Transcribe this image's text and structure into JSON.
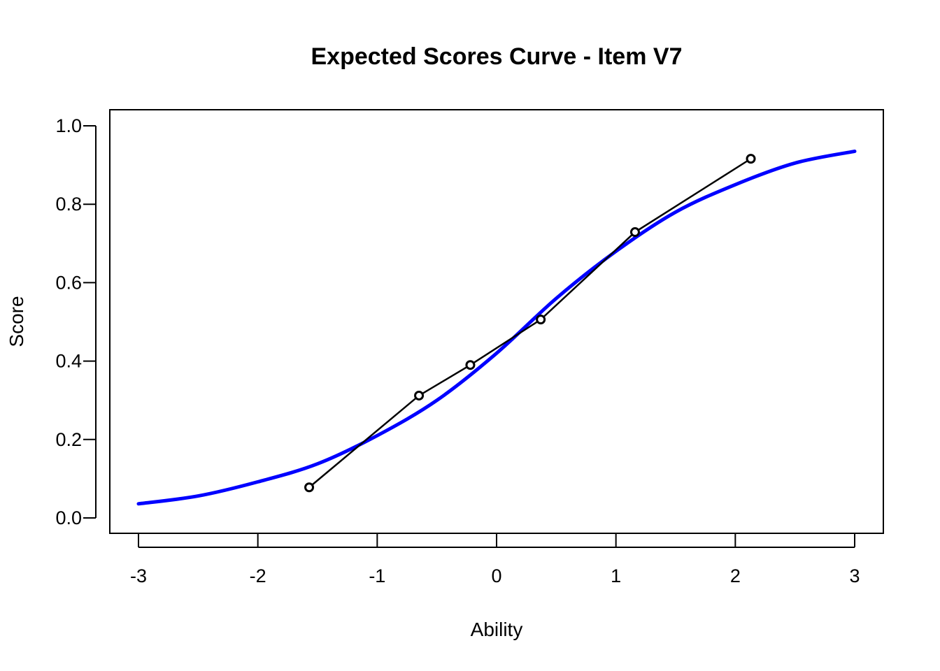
{
  "chart_data": {
    "type": "line",
    "title": "Expected Scores Curve - Item  V7",
    "xlabel": "Ability",
    "ylabel": "Score",
    "xlim": [
      -3,
      3
    ],
    "ylim": [
      0,
      1
    ],
    "x_ticks": [
      -3,
      -2,
      -1,
      0,
      1,
      2,
      3
    ],
    "x_tick_labels": [
      "-3",
      "-2",
      "-1",
      "0",
      "1",
      "2",
      "3"
    ],
    "y_ticks": [
      0.0,
      0.2,
      0.4,
      0.6,
      0.8,
      1.0
    ],
    "y_tick_labels": [
      "0.0",
      "0.2",
      "0.4",
      "0.6",
      "0.8",
      "1.0"
    ],
    "grid": false,
    "legend": "none",
    "series": [
      {
        "kind": "curve",
        "color": "#0000ff",
        "x": [
          -3.0,
          -2.5,
          -2.0,
          -1.5,
          -1.0,
          -0.5,
          0.0,
          0.5,
          1.0,
          1.5,
          2.0,
          2.5,
          3.0
        ],
        "y": [
          0.036,
          0.056,
          0.092,
          0.138,
          0.21,
          0.3,
          0.42,
          0.56,
          0.68,
          0.78,
          0.85,
          0.905,
          0.935
        ]
      },
      {
        "kind": "observed",
        "color": "#000000",
        "x": [
          -1.57,
          -0.65,
          -0.22,
          0.37,
          1.16,
          2.13
        ],
        "y": [
          0.078,
          0.312,
          0.39,
          0.506,
          0.729,
          0.916
        ]
      }
    ]
  }
}
